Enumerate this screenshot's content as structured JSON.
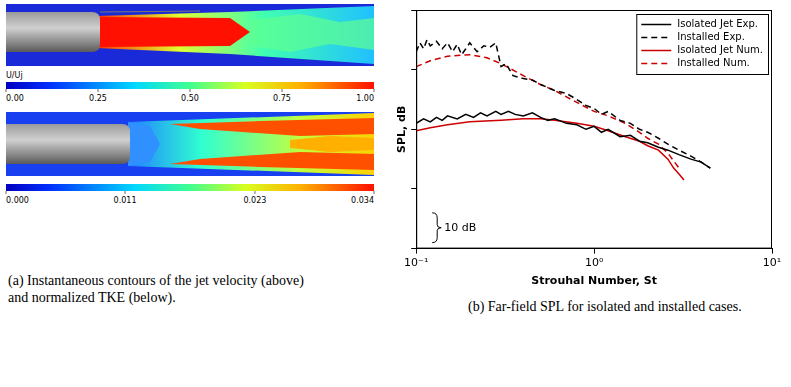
{
  "panel_a": {
    "images": [
      {
        "colorbar": {
          "label": "U/Uj",
          "range": [
            0,
            1
          ],
          "ticks": [
            {
              "value": 0,
              "label": "0.00"
            },
            0.25,
            {
              "value": 0.5,
              "label": "0.50"
            },
            0.75,
            {
              "value": 1,
              "label": "1.00"
            }
          ]
        }
      },
      {
        "colorbar": {
          "range": [
            0,
            0.034
          ],
          "ticks": [
            {
              "value": 0,
              "label": "0.000"
            },
            0.011,
            0.023,
            0.034
          ]
        }
      }
    ],
    "caption": "(a) Instantaneous contours of the jet velocity (above) and normalized TKE (below)."
  },
  "chart_data": {
    "type": "line",
    "caption": "(b) Far-field SPL for isolated and installed cases.",
    "x_label": "Strouhal Number, St",
    "y_label": "SPL, dB",
    "log": "x",
    "grid": false,
    "legend": "upper right",
    "tick_labels": "x",
    "xlim": [
      0.1,
      10
    ],
    "xticks": [
      {
        "value": 0.1,
        "label": "10⁻¹"
      },
      {
        "value": 1,
        "label": "10⁰"
      },
      {
        "value": 10,
        "label": "10¹"
      }
    ],
    "ylim": [
      0,
      80
    ],
    "yticks": [
      0,
      20,
      40,
      60,
      80
    ],
    "annotations": [
      {
        "text": "10 dB",
        "x": 0.123,
        "y": [
          2,
          12
        ]
      }
    ],
    "series": [
      {
        "name": "Isolated Jet Exp.",
        "color": "#000000",
        "line_style": "solid",
        "x": [
          0.1,
          0.11,
          0.12,
          0.13,
          0.14,
          0.15,
          0.17,
          0.19,
          0.21,
          0.23,
          0.25,
          0.28,
          0.3,
          0.33,
          0.36,
          0.4,
          0.45,
          0.5,
          0.55,
          0.6,
          0.7,
          0.8,
          0.9,
          1.0,
          1.1,
          1.2,
          1.4,
          1.6,
          1.8,
          2.0,
          2.3,
          2.6,
          3.0,
          3.5,
          4.0,
          4.5
        ],
        "values": [
          42,
          43.5,
          42.5,
          44,
          43,
          44.5,
          43.5,
          45,
          44,
          45.5,
          44.5,
          46,
          45,
          46,
          45,
          44.5,
          45.5,
          44,
          43,
          43.5,
          42,
          41.5,
          40,
          41,
          39,
          40,
          37.5,
          38,
          36,
          35.5,
          34,
          33,
          31.5,
          30,
          29,
          27
        ]
      },
      {
        "name": "Installed Exp.",
        "color": "#000000",
        "line_style": "dashed",
        "x": [
          0.1,
          0.105,
          0.11,
          0.115,
          0.12,
          0.13,
          0.14,
          0.15,
          0.16,
          0.17,
          0.18,
          0.19,
          0.2,
          0.22,
          0.24,
          0.26,
          0.28,
          0.3,
          0.32,
          0.35,
          0.4,
          0.45,
          0.5,
          0.55,
          0.6,
          0.7,
          0.8,
          0.9,
          1.0,
          1.1,
          1.2,
          1.4,
          1.6,
          1.8,
          2.0,
          2.3,
          2.6,
          3.0,
          3.5,
          4.0,
          4.5
        ],
        "values": [
          66,
          69,
          67,
          70,
          68,
          69.5,
          67,
          69,
          66,
          68.5,
          65,
          67,
          69,
          66,
          68,
          67.5,
          69,
          61,
          62,
          58,
          57,
          56.5,
          55,
          54,
          53,
          52,
          50,
          48,
          47,
          45,
          46,
          43,
          42,
          40,
          39,
          37,
          35,
          33,
          31,
          29,
          27
        ]
      },
      {
        "name": "Isolated Jet Num.",
        "color": "#cc0000",
        "line_style": "solid",
        "x": [
          0.1,
          0.12,
          0.15,
          0.2,
          0.3,
          0.4,
          0.5,
          0.6,
          0.8,
          1.0,
          1.2,
          1.5,
          1.8,
          2.0,
          2.3,
          2.6,
          2.8,
          3.0,
          3.2
        ],
        "values": [
          39.5,
          40.5,
          41.5,
          42.5,
          43,
          43.5,
          43.5,
          43,
          42,
          41,
          39.5,
          37.5,
          36,
          34.5,
          33,
          30,
          27,
          25,
          23
        ]
      },
      {
        "name": "Installed Num.",
        "color": "#cc0000",
        "line_style": "dashed",
        "x": [
          0.1,
          0.12,
          0.15,
          0.2,
          0.25,
          0.3,
          0.4,
          0.5,
          0.6,
          0.8,
          1.0,
          1.2,
          1.5,
          1.8,
          2.0,
          2.3,
          2.6,
          3.0
        ],
        "values": [
          61,
          63,
          64.5,
          65,
          64,
          62,
          58,
          55,
          53,
          49,
          46,
          44.5,
          42,
          39,
          37,
          35,
          32,
          27
        ]
      }
    ]
  }
}
